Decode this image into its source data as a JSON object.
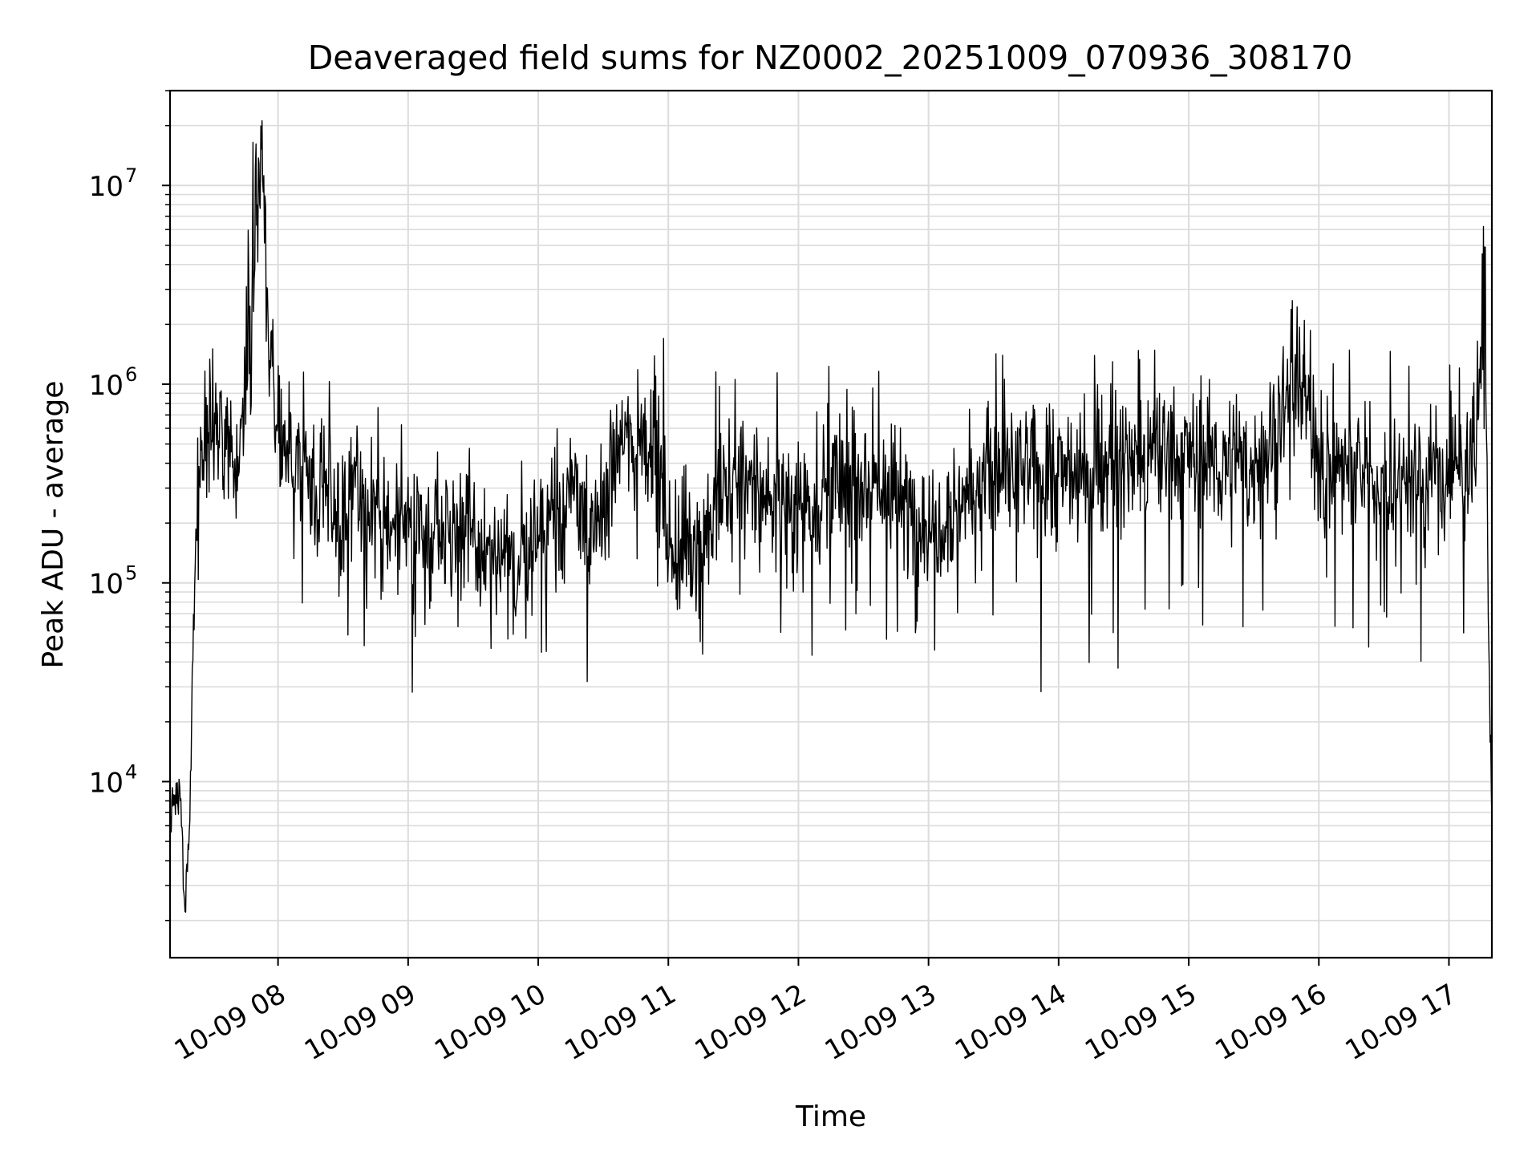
{
  "chart_data": {
    "type": "line",
    "title": "Deaveraged field sums for NZ0002_20251009_070936_308170",
    "xlabel": "Time",
    "ylabel": "Peak ADU - average",
    "yscale": "log",
    "ylim": [
      1300,
      30000000
    ],
    "xlim_hours": [
      7.17,
      17.33
    ],
    "grid": true,
    "line_color": "#000000",
    "x_ticks": [
      {
        "hour": 8,
        "label": "10-09 08"
      },
      {
        "hour": 9,
        "label": "10-09 09"
      },
      {
        "hour": 10,
        "label": "10-09 10"
      },
      {
        "hour": 11,
        "label": "10-09 11"
      },
      {
        "hour": 12,
        "label": "10-09 12"
      },
      {
        "hour": 13,
        "label": "10-09 13"
      },
      {
        "hour": 14,
        "label": "10-09 14"
      },
      {
        "hour": 15,
        "label": "10-09 15"
      },
      {
        "hour": 16,
        "label": "10-09 16"
      },
      {
        "hour": 17,
        "label": "10-09 17"
      }
    ],
    "y_ticks": [
      {
        "value": 10000,
        "base": "10",
        "exp": "4"
      },
      {
        "value": 100000,
        "base": "10",
        "exp": "5"
      },
      {
        "value": 1000000,
        "base": "10",
        "exp": "6"
      },
      {
        "value": 10000000,
        "base": "10",
        "exp": "7"
      }
    ],
    "series": [
      {
        "name": "Peak ADU - average",
        "description": "noisy time series, hour-of-day vs value; anchors below, noise generated deterministically between anchors",
        "anchors": [
          [
            7.17,
            7000
          ],
          [
            7.25,
            9000
          ],
          [
            7.28,
            2000
          ],
          [
            7.32,
            6000
          ],
          [
            7.35,
            60000
          ],
          [
            7.4,
            600000
          ],
          [
            7.5,
            700000
          ],
          [
            7.7,
            400000
          ],
          [
            7.88,
            15000000
          ],
          [
            7.93,
            1500000
          ],
          [
            8.0,
            450000
          ],
          [
            8.5,
            250000
          ],
          [
            9.0,
            200000
          ],
          [
            9.5,
            160000
          ],
          [
            9.8,
            110000
          ],
          [
            10.0,
            180000
          ],
          [
            10.3,
            300000
          ],
          [
            10.4,
            140000
          ],
          [
            10.6,
            500000
          ],
          [
            10.9,
            550000
          ],
          [
            11.0,
            160000
          ],
          [
            11.2,
            150000
          ],
          [
            11.5,
            300000
          ],
          [
            12.0,
            250000
          ],
          [
            12.5,
            350000
          ],
          [
            13.0,
            200000
          ],
          [
            13.5,
            350000
          ],
          [
            14.0,
            350000
          ],
          [
            14.5,
            400000
          ],
          [
            15.0,
            450000
          ],
          [
            15.5,
            350000
          ],
          [
            15.85,
            1200000
          ],
          [
            16.0,
            420000
          ],
          [
            16.5,
            320000
          ],
          [
            17.0,
            350000
          ],
          [
            17.2,
            500000
          ],
          [
            17.26,
            2000000
          ],
          [
            17.28,
            4500000
          ],
          [
            17.3,
            80000
          ],
          [
            17.33,
            6000
          ]
        ],
        "noise_dex": 0.32,
        "samples": 2200
      }
    ]
  }
}
